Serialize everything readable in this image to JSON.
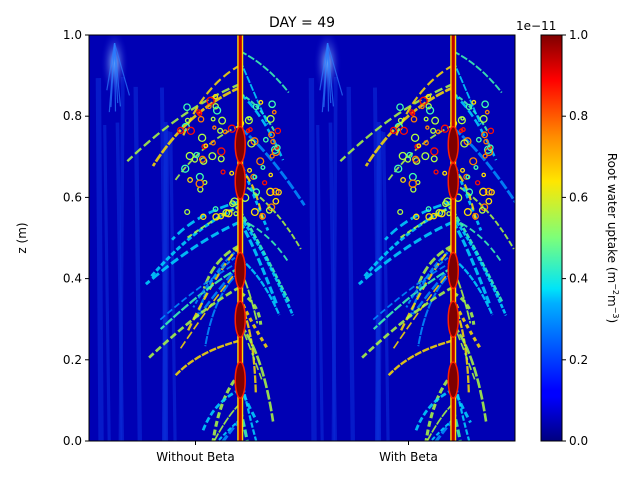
{
  "chart_data": {
    "type": "heatmap",
    "title": "DAY = 49",
    "ylabel": "z (m)",
    "ylim": [
      0,
      1
    ],
    "yticks": [
      "0.0",
      "0.2",
      "0.4",
      "0.6",
      "0.8",
      "1.0"
    ],
    "categories": [
      "Without Beta",
      "With Beta"
    ],
    "colorbar": {
      "label": "Root water uptake (m",
      "label_sup1": "−2",
      "label_mid": "m",
      "label_sup2": "−3",
      "label_end": ")",
      "offset": "1e−11",
      "range": [
        0,
        1
      ],
      "ticks": [
        "0.0",
        "0.2",
        "0.4",
        "0.6",
        "0.8",
        "1.0"
      ],
      "colormap": "jet"
    },
    "panels": [
      {
        "name": "Without Beta",
        "taproot_x": 0.71,
        "hotspot_z": [
          0.73,
          0.64,
          0.42,
          0.3,
          0.15
        ],
        "faint_source": [
          0.12,
          0.98
        ]
      },
      {
        "name": "With Beta",
        "taproot_x": 0.71,
        "hotspot_z": [
          0.73,
          0.64,
          0.42,
          0.3,
          0.15
        ],
        "faint_source": [
          0.12,
          0.98
        ]
      }
    ]
  }
}
